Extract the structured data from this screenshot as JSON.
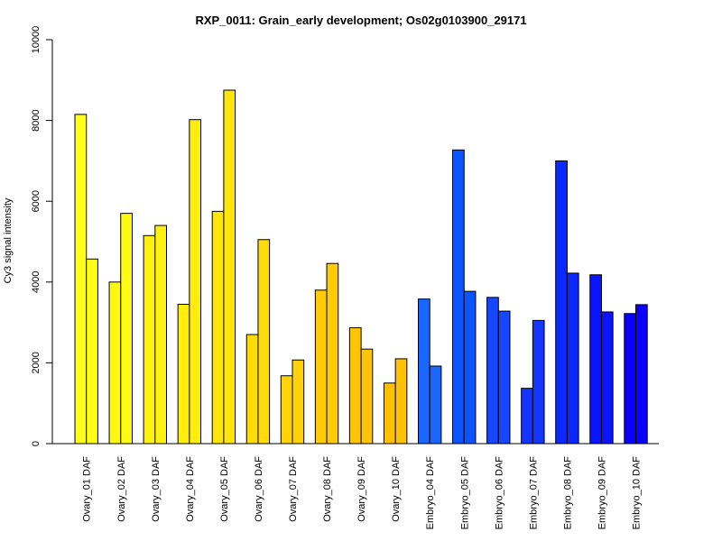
{
  "chart_data": {
    "type": "bar",
    "title": "RXP_0011: Grain_early development; Os02g0103900_29171",
    "xlabel": "",
    "ylabel": "Cy3 signal intensity",
    "ylim": [
      0,
      10000
    ],
    "yticks": [
      0,
      2000,
      4000,
      6000,
      8000,
      10000
    ],
    "grid": false,
    "legend": "none",
    "categories": [
      "Ovary_01 DAF",
      "Ovary_02 DAF",
      "Ovary_03 DAF",
      "Ovary_04 DAF",
      "Ovary_05 DAF",
      "Ovary_06 DAF",
      "Ovary_07 DAF",
      "Ovary_08 DAF",
      "Ovary_09 DAF",
      "Ovary_10 DAF",
      "Embryo_04 DAF",
      "Embryo_05 DAF",
      "Embryo_06 DAF",
      "Embryo_07 DAF",
      "Embryo_08 DAF",
      "Embryo_09 DAF",
      "Embryo_10 DAF"
    ],
    "series": [
      {
        "values": [
          8150,
          4000,
          5150,
          3450,
          5750,
          2700,
          1680,
          3800,
          2870,
          1500,
          3580,
          7270,
          3620,
          1370,
          7000,
          4180,
          3220
        ]
      },
      {
        "values": [
          4570,
          5700,
          5400,
          8020,
          8750,
          5050,
          2070,
          4460,
          2340,
          2100,
          1920,
          3770,
          3280,
          3050,
          4220,
          3260,
          3440
        ]
      }
    ],
    "colors": [
      "#FFFF1A",
      "#FFFA14",
      "#FFF10F",
      "#FFEE0D",
      "#FFE60A",
      "#FFDC08",
      "#FFD307",
      "#FFCB06",
      "#FFC504",
      "#FFC103",
      "#1A66FF",
      "#0A55FF",
      "#1646FF",
      "#1535FF",
      "#0A28FF",
      "#0A14FF",
      "#0A00FF"
    ]
  }
}
